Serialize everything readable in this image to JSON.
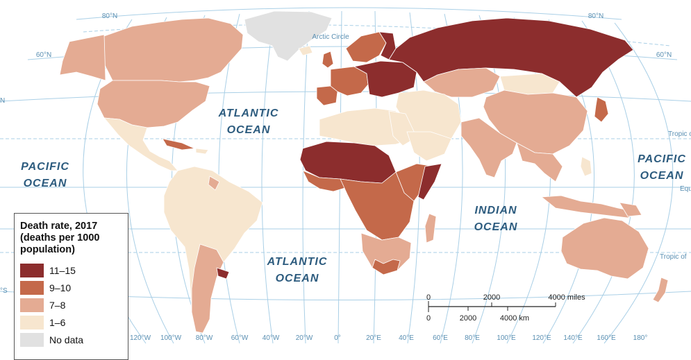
{
  "legend": {
    "title": "Death rate, 2017 (deaths per 1000 population)",
    "items": [
      {
        "label": "11–15",
        "color": "#8c2d2d"
      },
      {
        "label": "9–10",
        "color": "#c4694a"
      },
      {
        "label": "7–8",
        "color": "#e4ab93"
      },
      {
        "label": "1–6",
        "color": "#f7e6cf"
      },
      {
        "label": "No data",
        "color": "#e1e1e1"
      }
    ]
  },
  "oceans": {
    "pacific_left": [
      "PACIFIC",
      "OCEAN"
    ],
    "atlantic_north": [
      "ATLANTIC",
      "OCEAN"
    ],
    "atlantic_south": [
      "ATLANTIC",
      "OCEAN"
    ],
    "indian": [
      "INDIAN",
      "OCEAN"
    ],
    "pacific_right": [
      "PACIFIC",
      "OCEAN"
    ]
  },
  "graticule": {
    "lat_labels": [
      "80°N",
      "80°N",
      "60°N",
      "60°N",
      "N",
      "°S"
    ],
    "lines": [
      "Arctic Circle",
      "Tropic of",
      "Equ",
      "Tropic of"
    ],
    "lon_labels": [
      "120°W",
      "100°W",
      "80°W",
      "60°W",
      "40°W",
      "20°W",
      "0°",
      "20°E",
      "40°E",
      "60°E",
      "80°E",
      "100°E",
      "120°E",
      "140°E",
      "160°E",
      "180°"
    ]
  },
  "scale_bar": {
    "miles": [
      "0",
      "2000",
      "4000 miles"
    ],
    "km": [
      "0",
      "2000",
      "4000 km"
    ]
  }
}
